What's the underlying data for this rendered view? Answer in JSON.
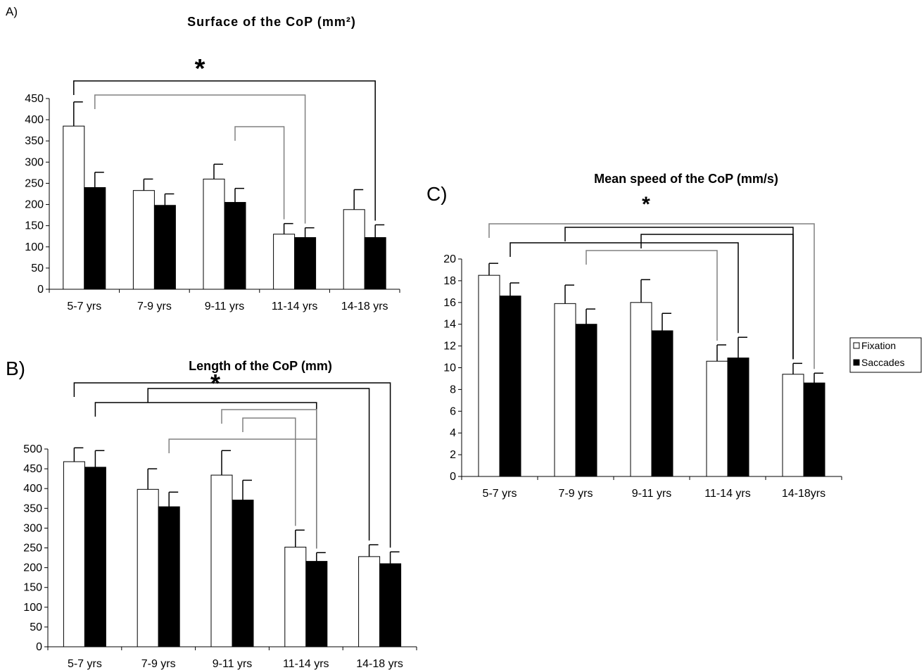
{
  "panels": [
    {
      "id": "A",
      "label": "A)",
      "title": "Surface of the CoP (mm²)",
      "star": "*"
    },
    {
      "id": "B",
      "label": "B)",
      "title": "Length of the CoP (mm)",
      "star": "*"
    },
    {
      "id": "C",
      "label": "C)",
      "title": "Mean speed of the CoP (mm/s)",
      "star": "*"
    }
  ],
  "legend": {
    "entries": [
      {
        "label": "Fixation",
        "color": "#ffffff"
      },
      {
        "label": "Saccades",
        "color": "#000000"
      }
    ]
  },
  "chart_data": [
    {
      "type": "bar",
      "panel": "A",
      "title": "Surface of the CoP (mm²)",
      "categories": [
        "5-7 yrs",
        "7-9 yrs",
        "9-11 yrs",
        "11-14 yrs",
        "14-18 yrs"
      ],
      "series": [
        {
          "name": "Fixation",
          "color": "#ffffff",
          "values": [
            385,
            233,
            260,
            130,
            188
          ],
          "errors": [
            57,
            27,
            35,
            25,
            47
          ]
        },
        {
          "name": "Saccades",
          "color": "#000000",
          "values": [
            240,
            198,
            205,
            122,
            122
          ],
          "errors": [
            36,
            27,
            33,
            23,
            30
          ]
        }
      ],
      "yticks": [
        0,
        50,
        100,
        150,
        200,
        250,
        300,
        350,
        400,
        450
      ],
      "ylim": [
        0,
        450
      ],
      "significance": [
        {
          "from": [
            0,
            0
          ],
          "to": [
            4,
            1
          ],
          "color": "#000000"
        },
        {
          "from": [
            0,
            1
          ],
          "to": [
            3,
            1
          ],
          "color": "#808080"
        },
        {
          "from": [
            2,
            1
          ],
          "to": [
            3,
            0
          ],
          "color": "#808080"
        }
      ]
    },
    {
      "type": "bar",
      "panel": "B",
      "title": "Length of the CoP (mm)",
      "categories": [
        "5-7 yrs",
        "7-9 yrs",
        "9-11 yrs",
        "11-14 yrs",
        "14-18 yrs"
      ],
      "series": [
        {
          "name": "Fixation",
          "color": "#ffffff",
          "values": [
            468,
            398,
            434,
            252,
            228
          ],
          "errors": [
            35,
            52,
            62,
            43,
            30
          ]
        },
        {
          "name": "Saccades",
          "color": "#000000",
          "values": [
            454,
            354,
            371,
            216,
            210
          ],
          "errors": [
            42,
            37,
            50,
            22,
            30
          ]
        }
      ],
      "yticks": [
        0,
        50,
        100,
        150,
        200,
        250,
        300,
        350,
        400,
        450,
        500
      ],
      "ylim": [
        0,
        500
      ],
      "significance": [
        {
          "from": [
            0,
            0
          ],
          "to": [
            4,
            1
          ],
          "color": "#000000"
        },
        {
          "from": [
            1,
            0
          ],
          "to": [
            4,
            0
          ],
          "color": "#000000"
        },
        {
          "from": [
            0,
            1
          ],
          "to": [
            3,
            1
          ],
          "color": "#000000"
        },
        {
          "from": [
            2,
            0
          ],
          "to": [
            3,
            1
          ],
          "color": "#808080"
        },
        {
          "from": [
            2,
            1
          ],
          "to": [
            3,
            0
          ],
          "color": "#808080"
        },
        {
          "from": [
            1,
            1
          ],
          "to": [
            3,
            1
          ],
          "color": "#808080"
        }
      ]
    },
    {
      "type": "bar",
      "panel": "C",
      "title": "Mean speed of the CoP (mm/s)",
      "categories": [
        "5-7 yrs",
        "7-9 yrs",
        "9-11 yrs",
        "11-14 yrs",
        "14-18yrs"
      ],
      "series": [
        {
          "name": "Fixation",
          "color": "#ffffff",
          "values": [
            18.5,
            15.9,
            16.0,
            10.6,
            9.4
          ],
          "errors": [
            1.1,
            1.7,
            2.1,
            1.5,
            1.0
          ]
        },
        {
          "name": "Saccades",
          "color": "#000000",
          "values": [
            16.6,
            14.0,
            13.4,
            10.9,
            8.6
          ],
          "errors": [
            1.2,
            1.4,
            1.6,
            1.9,
            0.9
          ]
        }
      ],
      "yticks": [
        0,
        2,
        4,
        6,
        8,
        10,
        12,
        14,
        16,
        18,
        20
      ],
      "ylim": [
        0,
        20
      ],
      "significance": [
        {
          "from": [
            0,
            0
          ],
          "to": [
            4,
            1
          ],
          "color": "#808080"
        },
        {
          "from": [
            1,
            0
          ],
          "to": [
            4,
            0
          ],
          "color": "#000000"
        },
        {
          "from": [
            2,
            0
          ],
          "to": [
            4,
            0
          ],
          "color": "#000000"
        },
        {
          "from": [
            0,
            1
          ],
          "to": [
            3,
            1
          ],
          "color": "#000000"
        },
        {
          "from": [
            1,
            1
          ],
          "to": [
            3,
            0
          ],
          "color": "#808080"
        }
      ]
    }
  ]
}
